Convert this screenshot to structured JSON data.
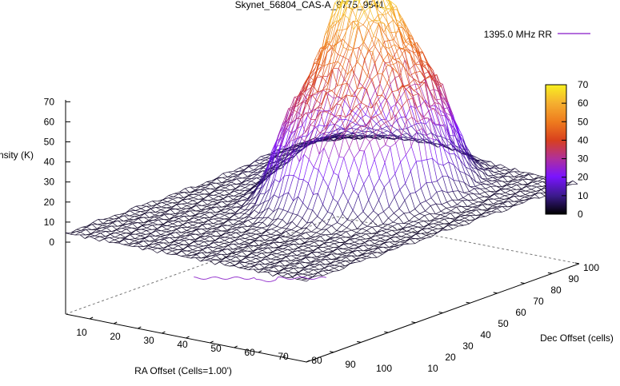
{
  "chart_data": {
    "type": "surface3d",
    "title": "Skynet_56804_CAS-A_8775_9541",
    "xlabel": "RA Offset (Cells=1.00')",
    "ylabel": "Dec Offset (cells)",
    "zlabel": "Intensity (K)",
    "legend": {
      "label": "1395.0 MHz RR",
      "position": "top-right",
      "color": "#9a3fd0"
    },
    "x_ticks": [
      10,
      20,
      30,
      40,
      50,
      60,
      70,
      80,
      90,
      100
    ],
    "y_ticks": [
      10,
      20,
      30,
      40,
      50,
      60,
      70,
      80,
      90,
      100
    ],
    "z_ticks": [
      0,
      10,
      20,
      30,
      40,
      50,
      60,
      70
    ],
    "xlim": [
      0,
      100
    ],
    "ylim": [
      0,
      100
    ],
    "zlim": [
      0,
      70
    ],
    "colorbar": {
      "ticks": [
        0,
        10,
        20,
        30,
        40,
        50,
        60,
        70
      ],
      "range": [
        0,
        70
      ],
      "palette": [
        "#000000",
        "#3a1a8a",
        "#7a14ff",
        "#b0309a",
        "#d8401e",
        "#ee7a1e",
        "#f5b030",
        "#f8f020"
      ]
    },
    "surface": {
      "grid": [
        100,
        100
      ],
      "background_K": 3,
      "peak": {
        "ra": 48,
        "dec": 68,
        "height_K": 66
      },
      "plateau": {
        "ra": 52,
        "dec": 64,
        "height_K": 40,
        "radius_cells": 26
      },
      "shelf": {
        "ra": 35,
        "dec": 80,
        "height_K": 25
      },
      "ridge": {
        "ra": [
          42,
          75
        ],
        "dec": 62,
        "height_K": 45
      }
    }
  }
}
